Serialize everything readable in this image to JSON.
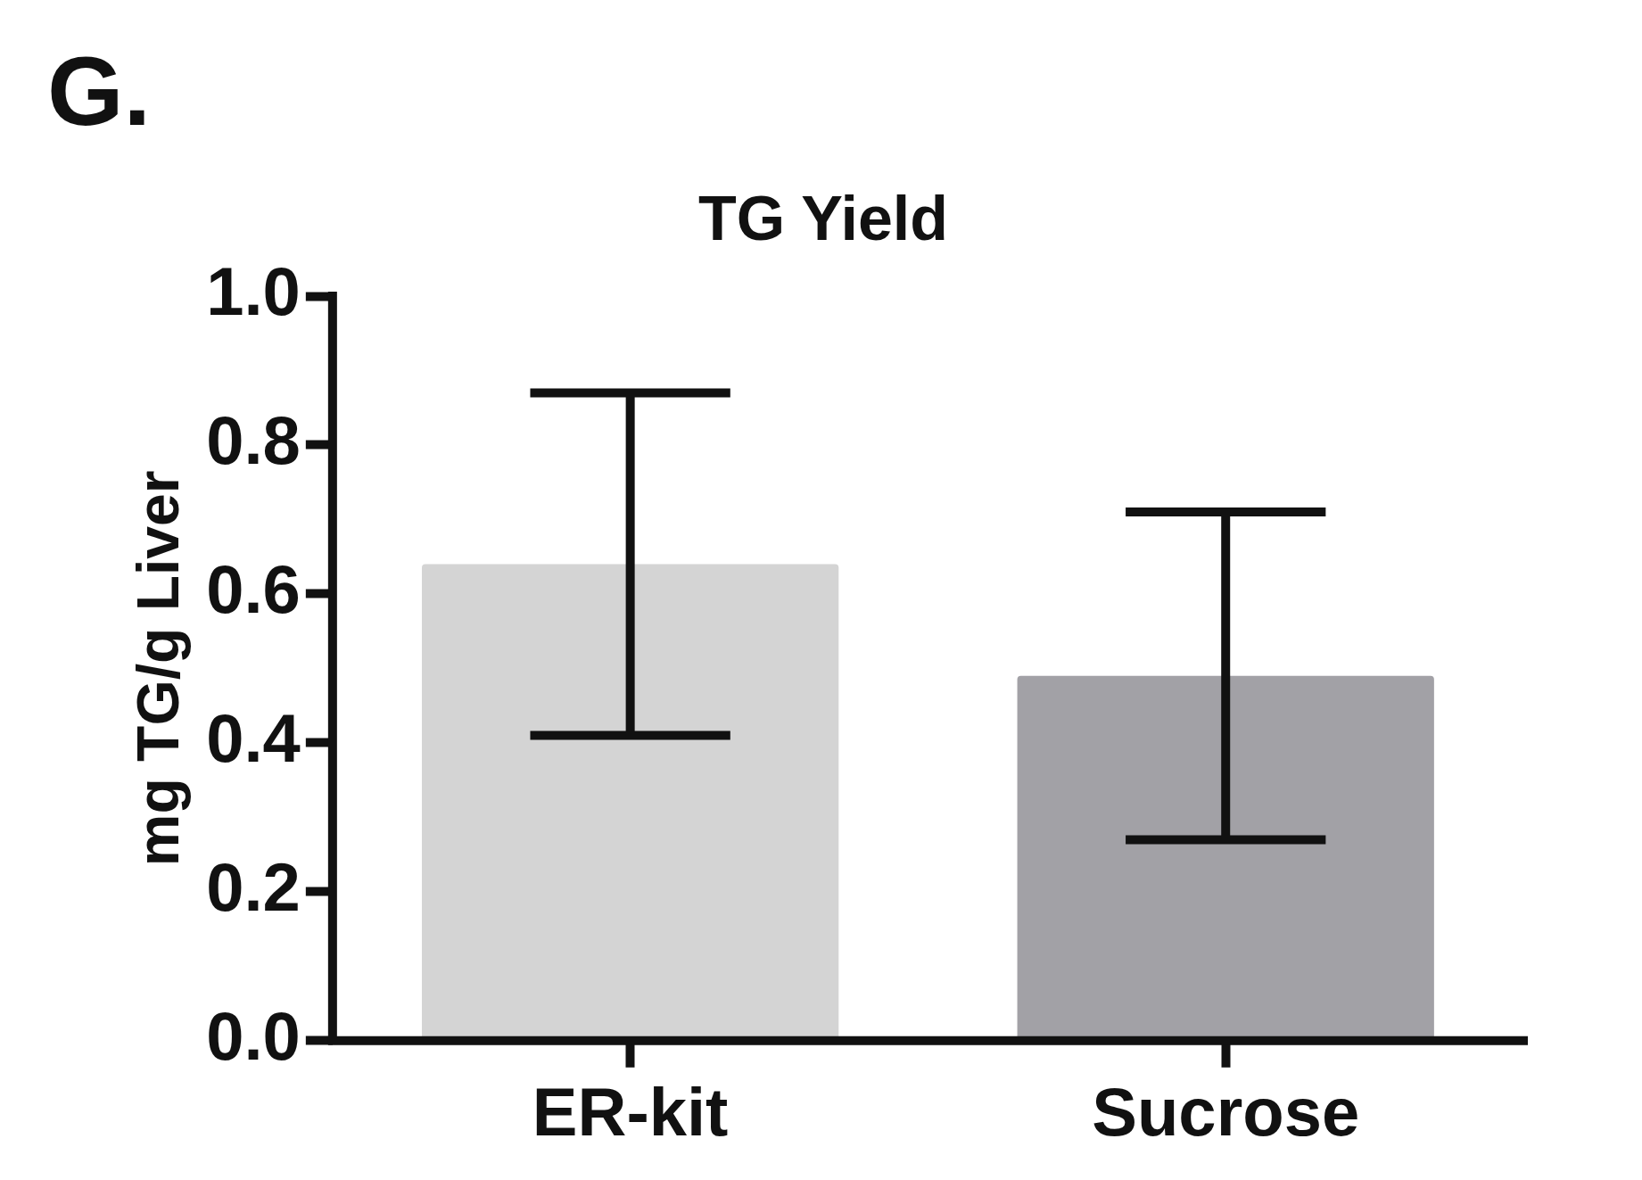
{
  "chart_data": {
    "type": "bar",
    "title": "TG Yield",
    "ylabel": "mg TG/g Liver",
    "annotations": [
      "G."
    ],
    "categories": [
      "ER-kit",
      "Sucrose"
    ],
    "values": [
      0.64,
      0.49
    ],
    "colors": [
      "#d4d4d4",
      "#a2a1a6"
    ],
    "errors": [
      0.23,
      0.22
    ],
    "ylim": [
      0,
      1
    ],
    "yticks": [
      {
        "value": 0,
        "label": "0.0"
      },
      {
        "value": 0.2,
        "label": "0.2"
      },
      {
        "value": 0.4,
        "label": "0.4"
      },
      {
        "value": 0.6,
        "label": "0.6"
      },
      {
        "value": 0.8,
        "label": "0.8"
      },
      {
        "value": 1,
        "label": "1.0"
      }
    ],
    "grid": false,
    "legend": false
  }
}
